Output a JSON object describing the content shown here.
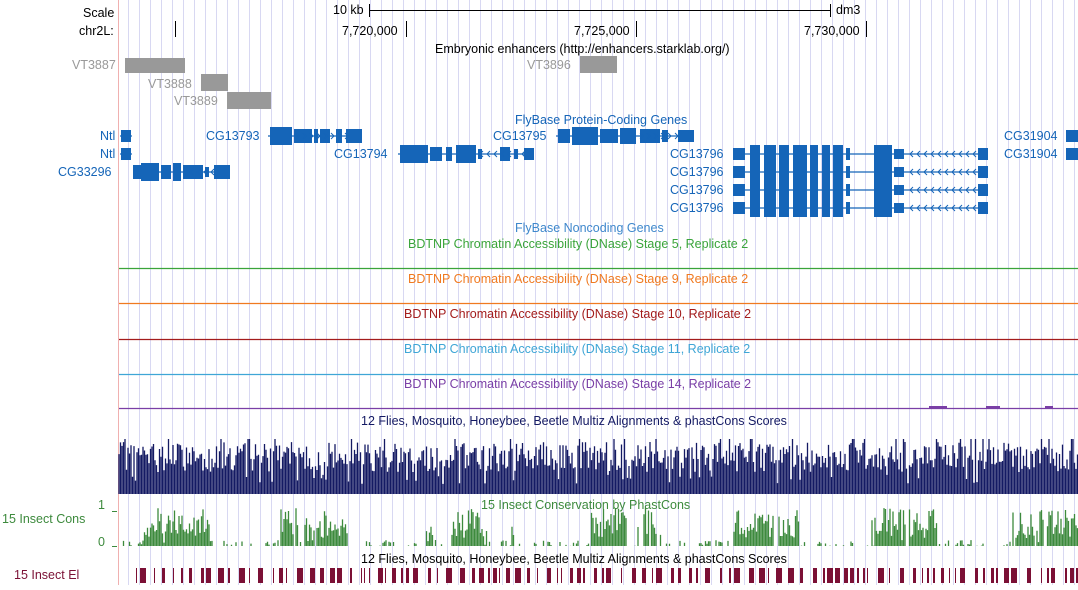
{
  "ruler": {
    "scale_label": "Scale",
    "scale_value": "10 kb",
    "assembly": "dm3",
    "chrom_label": "chr2L:",
    "ticks": [
      "7,720,000",
      "7,725,000",
      "7,730,000"
    ]
  },
  "tracks": {
    "enhancers": {
      "title": "Embryonic enhancers (http://enhancers.starklab.org/)",
      "items": [
        "VT3887",
        "VT3888",
        "VT3889",
        "VT3896"
      ]
    },
    "genes": {
      "title": "FlyBase Protein-Coding Genes",
      "labels": [
        "Ntl",
        "Ntl",
        "CG33296",
        "CG13793",
        "CG13794",
        "CG13795",
        "CG13796",
        "CG13796",
        "CG13796",
        "CG13796",
        "CG31904",
        "CG31904"
      ]
    },
    "noncoding": {
      "title": "FlyBase Noncoding Genes"
    },
    "dnase": [
      {
        "title": "BDTNP Chromatin Accessibility (DNase) Stage 5, Replicate 2",
        "color": "#3aa43a"
      },
      {
        "title": "BDTNP Chromatin Accessibility (DNase) Stage 9, Replicate 2",
        "color": "#f07a20"
      },
      {
        "title": "BDTNP Chromatin Accessibility (DNase) Stage 10, Replicate 2",
        "color": "#a31c1c"
      },
      {
        "title": "BDTNP Chromatin Accessibility (DNase) Stage 11, Replicate 2",
        "color": "#3fa6d6"
      },
      {
        "title": "BDTNP Chromatin Accessibility (DNase) Stage 14, Replicate 2",
        "color": "#7a3fa6"
      }
    ],
    "multiz": {
      "title": "12 Flies, Mosquito, Honeybee, Beetle Multiz Alignments & phastCons Scores"
    },
    "cons": {
      "title": "15 Insect Conservation by PhastCons",
      "side_label": "15 Insect Cons",
      "ymax": "1",
      "ymin": "0"
    },
    "elements": {
      "title": "12 Flies, Mosquito, Honeybee, Beetle Multiz Alignments & phastCons Scores",
      "side_label": "15 Insect El"
    }
  },
  "colors": {
    "gene": "#1565b8",
    "enhancer": "#999999",
    "multiz": "#141a63",
    "cons": "#3d8a3d",
    "elements": "#7b1035",
    "guide": "#d8d8f2",
    "left_border": "#f0b0b0"
  }
}
